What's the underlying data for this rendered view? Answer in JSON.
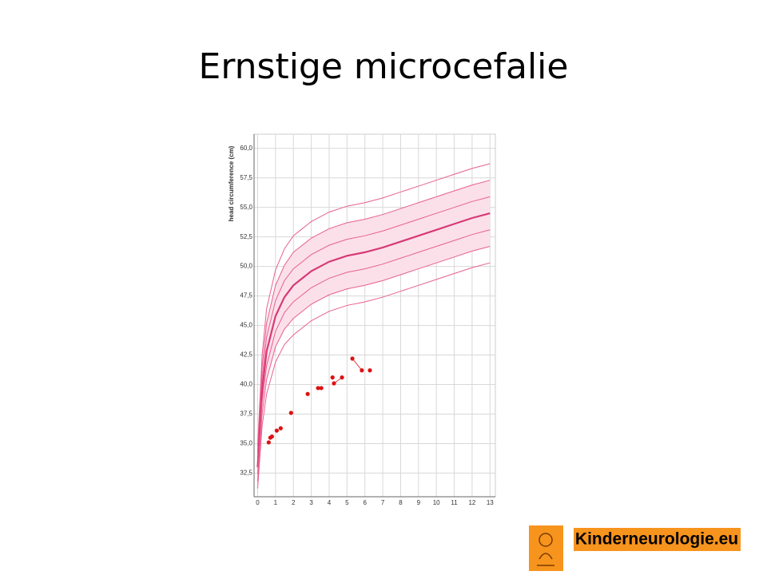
{
  "slide": {
    "title": "Ernstige microcefalie"
  },
  "logo": {
    "text": "Kinderneurologie.eu"
  },
  "chart_data": {
    "type": "line",
    "y_label": "head circumference (cm)",
    "xlim": [
      -0.2,
      13.3
    ],
    "ylim": [
      30.5,
      61.2
    ],
    "xticks": [
      0,
      1,
      2,
      3,
      4,
      5,
      6,
      7,
      8,
      9,
      10,
      11,
      12,
      13
    ],
    "yticks": [
      {
        "value": 32.5,
        "label": "32,5"
      },
      {
        "value": 35,
        "label": "35,0"
      },
      {
        "value": 37.5,
        "label": "37,5"
      },
      {
        "value": 40,
        "label": "40,0"
      },
      {
        "value": 42.5,
        "label": "42,5"
      },
      {
        "value": 45,
        "label": "45,0"
      },
      {
        "value": 47.5,
        "label": "47,5"
      },
      {
        "value": 50,
        "label": "50,0"
      },
      {
        "value": 52.5,
        "label": "52,5"
      },
      {
        "value": 55,
        "label": "55,0"
      },
      {
        "value": 57.5,
        "label": "57,5"
      },
      {
        "value": 60,
        "label": "60,0"
      }
    ],
    "grid": true,
    "x": [
      0,
      0.25,
      0.5,
      1,
      1.5,
      2,
      3,
      4,
      5,
      6,
      7,
      8,
      9,
      10,
      11,
      12,
      13
    ],
    "series": [
      {
        "color": "#e8608e",
        "values": [
          34.8,
          42.5,
          46.4,
          49.7,
          51.5,
          52.6,
          53.8,
          54.6,
          55.1,
          55.4,
          55.8,
          56.3,
          56.8,
          57.3,
          57.8,
          58.3,
          58.7
        ]
      },
      {
        "color": "#e8608e",
        "values": [
          34.2,
          41.5,
          45.2,
          48.4,
          50.1,
          51.2,
          52.4,
          53.2,
          53.7,
          54.0,
          54.4,
          54.9,
          55.4,
          55.9,
          56.4,
          56.9,
          57.3
        ]
      },
      {
        "color": "#e8608e",
        "values": [
          33.6,
          40.5,
          44.0,
          47.1,
          48.8,
          49.8,
          51.0,
          51.8,
          52.3,
          52.6,
          53.0,
          53.5,
          54.0,
          54.5,
          55.0,
          55.5,
          55.9
        ]
      },
      {
        "color": "#d63a75",
        "values": [
          33.0,
          39.5,
          42.8,
          45.8,
          47.4,
          48.4,
          49.6,
          50.4,
          50.9,
          51.2,
          51.6,
          52.1,
          52.6,
          53.1,
          53.6,
          54.1,
          54.5
        ]
      },
      {
        "color": "#e8608e",
        "values": [
          32.4,
          38.5,
          41.6,
          44.5,
          46.1,
          47.0,
          48.2,
          49.0,
          49.5,
          49.8,
          50.2,
          50.7,
          51.2,
          51.7,
          52.2,
          52.7,
          53.1
        ]
      },
      {
        "color": "#e8608e",
        "values": [
          31.8,
          37.5,
          40.4,
          43.2,
          44.7,
          45.6,
          46.8,
          47.6,
          48.1,
          48.4,
          48.8,
          49.3,
          49.8,
          50.3,
          50.8,
          51.3,
          51.7
        ]
      },
      {
        "color": "#e8608e",
        "values": [
          31.2,
          36.5,
          39.2,
          41.9,
          43.4,
          44.2,
          45.4,
          46.2,
          46.7,
          47.0,
          47.4,
          47.9,
          48.4,
          48.9,
          49.4,
          49.9,
          50.3
        ]
      }
    ],
    "points": {
      "type": "scatter",
      "color": "#dd1111",
      "x": [
        0.62,
        0.71,
        0.8,
        1.07,
        1.29,
        1.87,
        2.8,
        3.38,
        3.56,
        4.19,
        4.27,
        4.72,
        5.3,
        5.83,
        6.28
      ],
      "values": [
        35.1,
        35.5,
        35.6,
        36.1,
        36.3,
        37.6,
        39.2,
        39.7,
        39.7,
        40.6,
        40.1,
        40.6,
        42.2,
        41.2,
        41.2
      ]
    }
  }
}
